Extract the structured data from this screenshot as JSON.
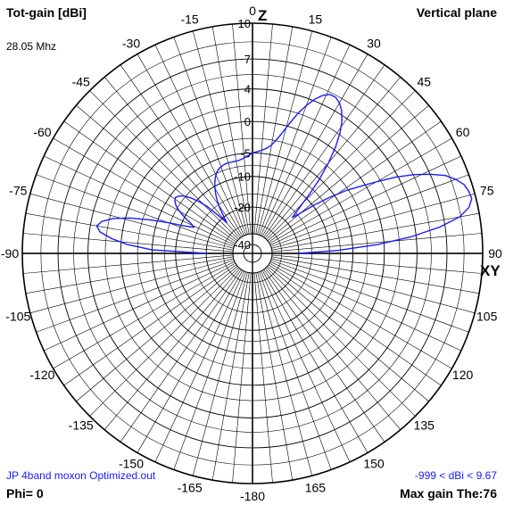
{
  "header": {
    "title_left": "Tot-gain [dBi]",
    "title_right": "Vertical plane",
    "frequency": "28.05 Mhz"
  },
  "footer": {
    "filename": "JP 4band moxon Optimized.out",
    "range": "-999 < dBi < 9.67",
    "phi": "Phi= 0",
    "max_gain": "Max gain The:76"
  },
  "chart_data": {
    "type": "polar",
    "title": "Tot-gain [dBi]",
    "subtitle": "Vertical plane",
    "frequency": "28.05 Mhz",
    "axis_labels": {
      "zenith": "Z",
      "horizon": "XY"
    },
    "radial_ticks_dbi": [
      10,
      7,
      4,
      0,
      -5,
      -10,
      -20,
      -40
    ],
    "angle_ticks_deg": [
      0,
      15,
      30,
      45,
      60,
      75,
      90,
      105,
      120,
      135,
      150,
      165,
      -180,
      -165,
      -150,
      -135,
      -120,
      -105,
      -90,
      -75,
      -60,
      -45,
      -30,
      -15
    ],
    "max_gain_dbi": 9.67,
    "max_gain_theta_deg": 76,
    "line_color": "#1a1aff",
    "series": [
      {
        "theta_deg": [
          -90,
          -88,
          -86,
          -84,
          -82,
          -80,
          -78,
          -76,
          -74,
          -72,
          -70,
          -68,
          -66,
          -64,
          -62,
          -60,
          -58,
          -56,
          -54,
          -52,
          -50,
          -48,
          -46,
          -44,
          -42,
          -40,
          -38,
          -36,
          -34,
          -32,
          -30,
          -28,
          -26,
          -24,
          -22,
          -20,
          -18,
          -16,
          -14,
          -12,
          -10,
          -8,
          -6,
          -4,
          -2,
          0,
          2,
          4,
          6,
          8,
          10,
          12,
          14,
          16,
          18,
          20,
          22,
          24,
          26,
          28,
          30,
          32,
          34,
          36,
          38,
          40,
          42,
          44,
          46,
          48,
          50,
          52,
          54,
          56,
          58,
          60,
          62,
          64,
          66,
          68,
          70,
          72,
          74,
          76,
          78,
          80,
          82,
          84,
          86,
          88,
          90
        ],
        "gain_dbi": [
          -20,
          -5,
          -1,
          1.3,
          2.8,
          3.3,
          2.8,
          1.6,
          -0.5,
          -3.5,
          -7,
          -11,
          -13.5,
          -12.2,
          -10,
          -8.3,
          -7,
          -6.3,
          -6,
          -6.4,
          -7.2,
          -8.6,
          -10.5,
          -13.2,
          -18,
          -23,
          -20,
          -16.5,
          -14,
          -12,
          -10.5,
          -9.2,
          -8.2,
          -7.4,
          -6.9,
          -6.6,
          -6.4,
          -6.3,
          -6.3,
          -6.3,
          -6.3,
          -6.2,
          -6,
          -5.7,
          -5.4,
          -5,
          -4.8,
          -4.6,
          -4.3,
          -3.9,
          -3.3,
          -2.3,
          -1,
          0.5,
          2,
          3.2,
          4.2,
          4.9,
          5.3,
          5.3,
          5,
          4.4,
          3.5,
          2.2,
          0.4,
          -2,
          -5,
          -9,
          -13.5,
          -17,
          -14,
          -9.5,
          -6,
          -3,
          -0.8,
          1.5,
          3.8,
          5.6,
          7,
          8.2,
          8.9,
          9.4,
          9.6,
          9.67,
          9.3,
          8.4,
          6.5,
          3.5,
          -1,
          -8,
          -20
        ]
      }
    ]
  }
}
